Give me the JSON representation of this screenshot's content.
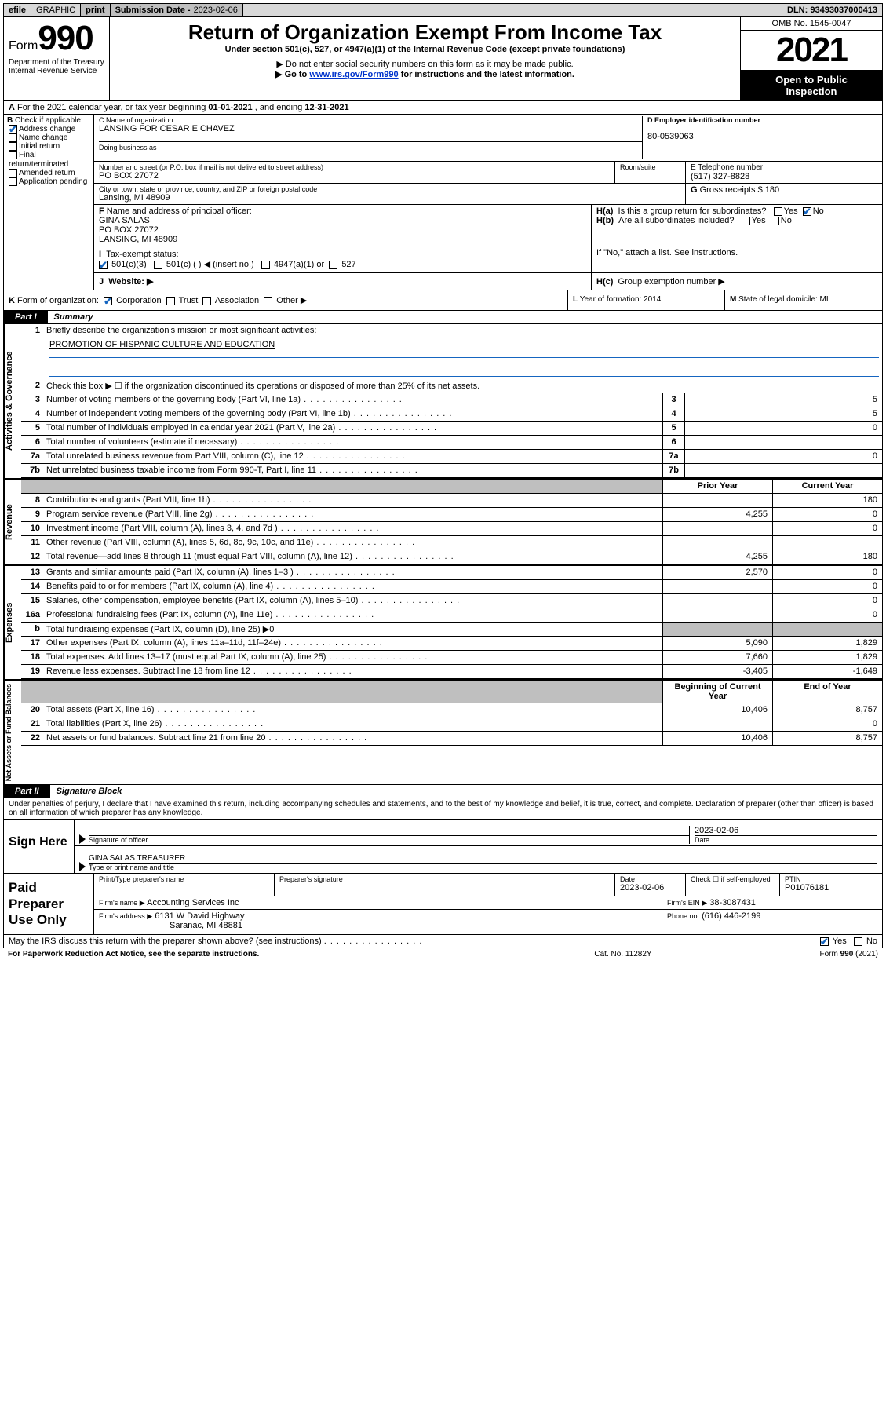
{
  "topbar": {
    "efile": "efile",
    "graphic": "GRAPHIC",
    "print": "print",
    "subdate_label": "Submission Date -",
    "subdate_val": "2023-02-06",
    "dln_label": "DLN:",
    "dln_val": "93493037000413"
  },
  "header": {
    "form_word": "Form",
    "form_num": "990",
    "title": "Return of Organization Exempt From Income Tax",
    "sub1": "Under section 501(c), 527, or 4947(a)(1) of the Internal Revenue Code (except private foundations)",
    "sub2": "▶ Do not enter social security numbers on this form as it may be made public.",
    "sub3a": "▶ Go to ",
    "sub3link": "www.irs.gov/Form990",
    "sub3b": " for instructions and the latest information.",
    "dept1": "Department of the Treasury",
    "dept2": "Internal Revenue Service",
    "omb": "OMB No. 1545-0047",
    "year": "2021",
    "openpub1": "Open to Public",
    "openpub2": "Inspection"
  },
  "rowA": {
    "a": "A",
    "txt1": "For the 2021 calendar year, or tax year beginning ",
    "d1": "01-01-2021",
    "txt2": " , and ending ",
    "d2": "12-31-2021"
  },
  "boxB": {
    "hdr": "B",
    "label": "Check if applicable:",
    "opts": [
      "Address change",
      "Name change",
      "Initial return",
      "Final return/terminated",
      "Amended return",
      "Application pending"
    ],
    "checked_idx": 0
  },
  "boxC": {
    "label": "C Name of organization",
    "name": "LANSING FOR CESAR E CHAVEZ",
    "dba_label": "Doing business as"
  },
  "boxD": {
    "label": "D Employer identification number",
    "val": "80-0539063"
  },
  "addr": {
    "label": "Number and street (or P.O. box if mail is not delivered to street address)",
    "val": "PO BOX 27072",
    "room": "Room/suite",
    "city_label": "City or town, state or province, country, and ZIP or foreign postal code",
    "city_val": "Lansing, MI  48909"
  },
  "boxE": {
    "label": "E Telephone number",
    "val": "(517) 327-8828"
  },
  "boxG": {
    "label": "G",
    "txt": "Gross receipts $",
    "val": "180"
  },
  "boxF": {
    "label": "F",
    "txt": "Name and address of principal officer:",
    "name": "GINA SALAS",
    "l2": "PO BOX 27072",
    "l3": "LANSING, MI  48909"
  },
  "boxH": {
    "a_label": "H(a)",
    "a_txt": "Is this a group return for subordinates?",
    "b_label": "H(b)",
    "b_txt": "Are all subordinates included?",
    "note": "If \"No,\" attach a list. See instructions.",
    "c_label": "H(c)",
    "c_txt": "Group exemption number ▶",
    "yes": "Yes",
    "no": "No"
  },
  "rowI": {
    "label": "I",
    "txt": "Tax-exempt status:",
    "o1": "501(c)(3)",
    "o2": "501(c) (   ) ◀ (insert no.)",
    "o3": "4947(a)(1) or",
    "o4": "527"
  },
  "rowJ": {
    "label": "J",
    "txt": "Website: ▶"
  },
  "rowK": {
    "label": "K",
    "txt": "Form of organization:",
    "o1": "Corporation",
    "o2": "Trust",
    "o3": "Association",
    "o4": "Other ▶"
  },
  "rowL": {
    "label": "L",
    "txt": "Year of formation:",
    "val": "2014"
  },
  "rowM": {
    "label": "M",
    "txt": "State of legal domicile:",
    "val": "MI"
  },
  "part1": {
    "label": "Part I",
    "title": "Summary"
  },
  "summary": {
    "gov_label": "Activities & Governance",
    "rev_label": "Revenue",
    "exp_label": "Expenses",
    "nab_label": "Net Assets or Fund Balances",
    "line1_txt": "Briefly describe the organization's mission or most significant activities:",
    "mission": "PROMOTION OF HISPANIC CULTURE AND EDUCATION",
    "line2_txt": "Check this box ▶ ☐  if the organization discontinued its operations or disposed of more than 25% of its net assets.",
    "prior_hdr": "Prior Year",
    "curr_hdr": "Current Year",
    "beg_hdr": "Beginning of Current Year",
    "end_hdr": "End of Year",
    "lines_small": [
      {
        "n": "3",
        "t": "Number of voting members of the governing body (Part VI, line 1a)",
        "v": "5"
      },
      {
        "n": "4",
        "t": "Number of independent voting members of the governing body (Part VI, line 1b)",
        "v": "5"
      },
      {
        "n": "5",
        "t": "Total number of individuals employed in calendar year 2021 (Part V, line 2a)",
        "v": "0"
      },
      {
        "n": "6",
        "t": "Total number of volunteers (estimate if necessary)",
        "v": ""
      },
      {
        "n": "7a",
        "t": "Total unrelated business revenue from Part VIII, column (C), line 12",
        "v": "0"
      },
      {
        "n": "7b",
        "t": "Net unrelated business taxable income from Form 990-T, Part I, line 11",
        "v": ""
      }
    ],
    "rev_lines": [
      {
        "n": "8",
        "t": "Contributions and grants (Part VIII, line 1h)",
        "p": "",
        "c": "180"
      },
      {
        "n": "9",
        "t": "Program service revenue (Part VIII, line 2g)",
        "p": "4,255",
        "c": "0"
      },
      {
        "n": "10",
        "t": "Investment income (Part VIII, column (A), lines 3, 4, and 7d )",
        "p": "",
        "c": "0"
      },
      {
        "n": "11",
        "t": "Other revenue (Part VIII, column (A), lines 5, 6d, 8c, 9c, 10c, and 11e)",
        "p": "",
        "c": ""
      },
      {
        "n": "12",
        "t": "Total revenue—add lines 8 through 11 (must equal Part VIII, column (A), line 12)",
        "p": "4,255",
        "c": "180"
      }
    ],
    "exp_lines": [
      {
        "n": "13",
        "t": "Grants and similar amounts paid (Part IX, column (A), lines 1–3 )",
        "p": "2,570",
        "c": "0"
      },
      {
        "n": "14",
        "t": "Benefits paid to or for members (Part IX, column (A), line 4)",
        "p": "",
        "c": "0"
      },
      {
        "n": "15",
        "t": "Salaries, other compensation, employee benefits (Part IX, column (A), lines 5–10)",
        "p": "",
        "c": "0"
      },
      {
        "n": "16a",
        "t": "Professional fundraising fees (Part IX, column (A), line 11e)",
        "p": "",
        "c": "0"
      }
    ],
    "line16b_t": "Total fundraising expenses (Part IX, column (D), line 25) ▶",
    "line16b_v": "0",
    "exp_lines2": [
      {
        "n": "17",
        "t": "Other expenses (Part IX, column (A), lines 11a–11d, 11f–24e)",
        "p": "5,090",
        "c": "1,829"
      },
      {
        "n": "18",
        "t": "Total expenses. Add lines 13–17 (must equal Part IX, column (A), line 25)",
        "p": "7,660",
        "c": "1,829"
      },
      {
        "n": "19",
        "t": "Revenue less expenses. Subtract line 18 from line 12",
        "p": "-3,405",
        "c": "-1,649"
      }
    ],
    "nab_lines": [
      {
        "n": "20",
        "t": "Total assets (Part X, line 16)",
        "p": "10,406",
        "c": "8,757"
      },
      {
        "n": "21",
        "t": "Total liabilities (Part X, line 26)",
        "p": "",
        "c": "0"
      },
      {
        "n": "22",
        "t": "Net assets or fund balances. Subtract line 21 from line 20",
        "p": "10,406",
        "c": "8,757"
      }
    ]
  },
  "part2": {
    "label": "Part II",
    "title": "Signature Block"
  },
  "sig": {
    "decl": "Under penalties of perjury, I declare that I have examined this return, including accompanying schedules and statements, and to the best of my knowledge and belief, it is true, correct, and complete. Declaration of preparer (other than officer) is based on all information of which preparer has any knowledge.",
    "sign_here": "Sign Here",
    "sig_of_officer": "Signature of officer",
    "date_lbl": "Date",
    "date_val": "2023-02-06",
    "name_title": "GINA SALAS  TREASURER",
    "type_name": "Type or print name and title"
  },
  "prep": {
    "label": "Paid Preparer Use Only",
    "r1": {
      "c1": "Print/Type preparer's name",
      "c2": "Preparer's signature",
      "c3_lbl": "Date",
      "c3_val": "2023-02-06",
      "c4_lbl": "Check ☐ if self-employed",
      "c5_lbl": "PTIN",
      "c5_val": "P01076181"
    },
    "r2": {
      "firm_lbl": "Firm's name    ▶",
      "firm_val": "Accounting Services Inc",
      "ein_lbl": "Firm's EIN ▶",
      "ein_val": "38-3087431"
    },
    "r3": {
      "addr_lbl": "Firm's address ▶",
      "addr_val1": "6131 W David Highway",
      "addr_val2": "Saranac, MI  48881",
      "phone_lbl": "Phone no.",
      "phone_val": "(616) 446-2199"
    }
  },
  "foot": {
    "discuss": "May the IRS discuss this return with the preparer shown above? (see instructions)",
    "yes": "Yes",
    "no": "No",
    "l1": "For Paperwork Reduction Act Notice, see the separate instructions.",
    "l2": "Cat. No. 11282Y",
    "l3a": "Form ",
    "l3b": "990",
    "l3c": " (2021)"
  }
}
